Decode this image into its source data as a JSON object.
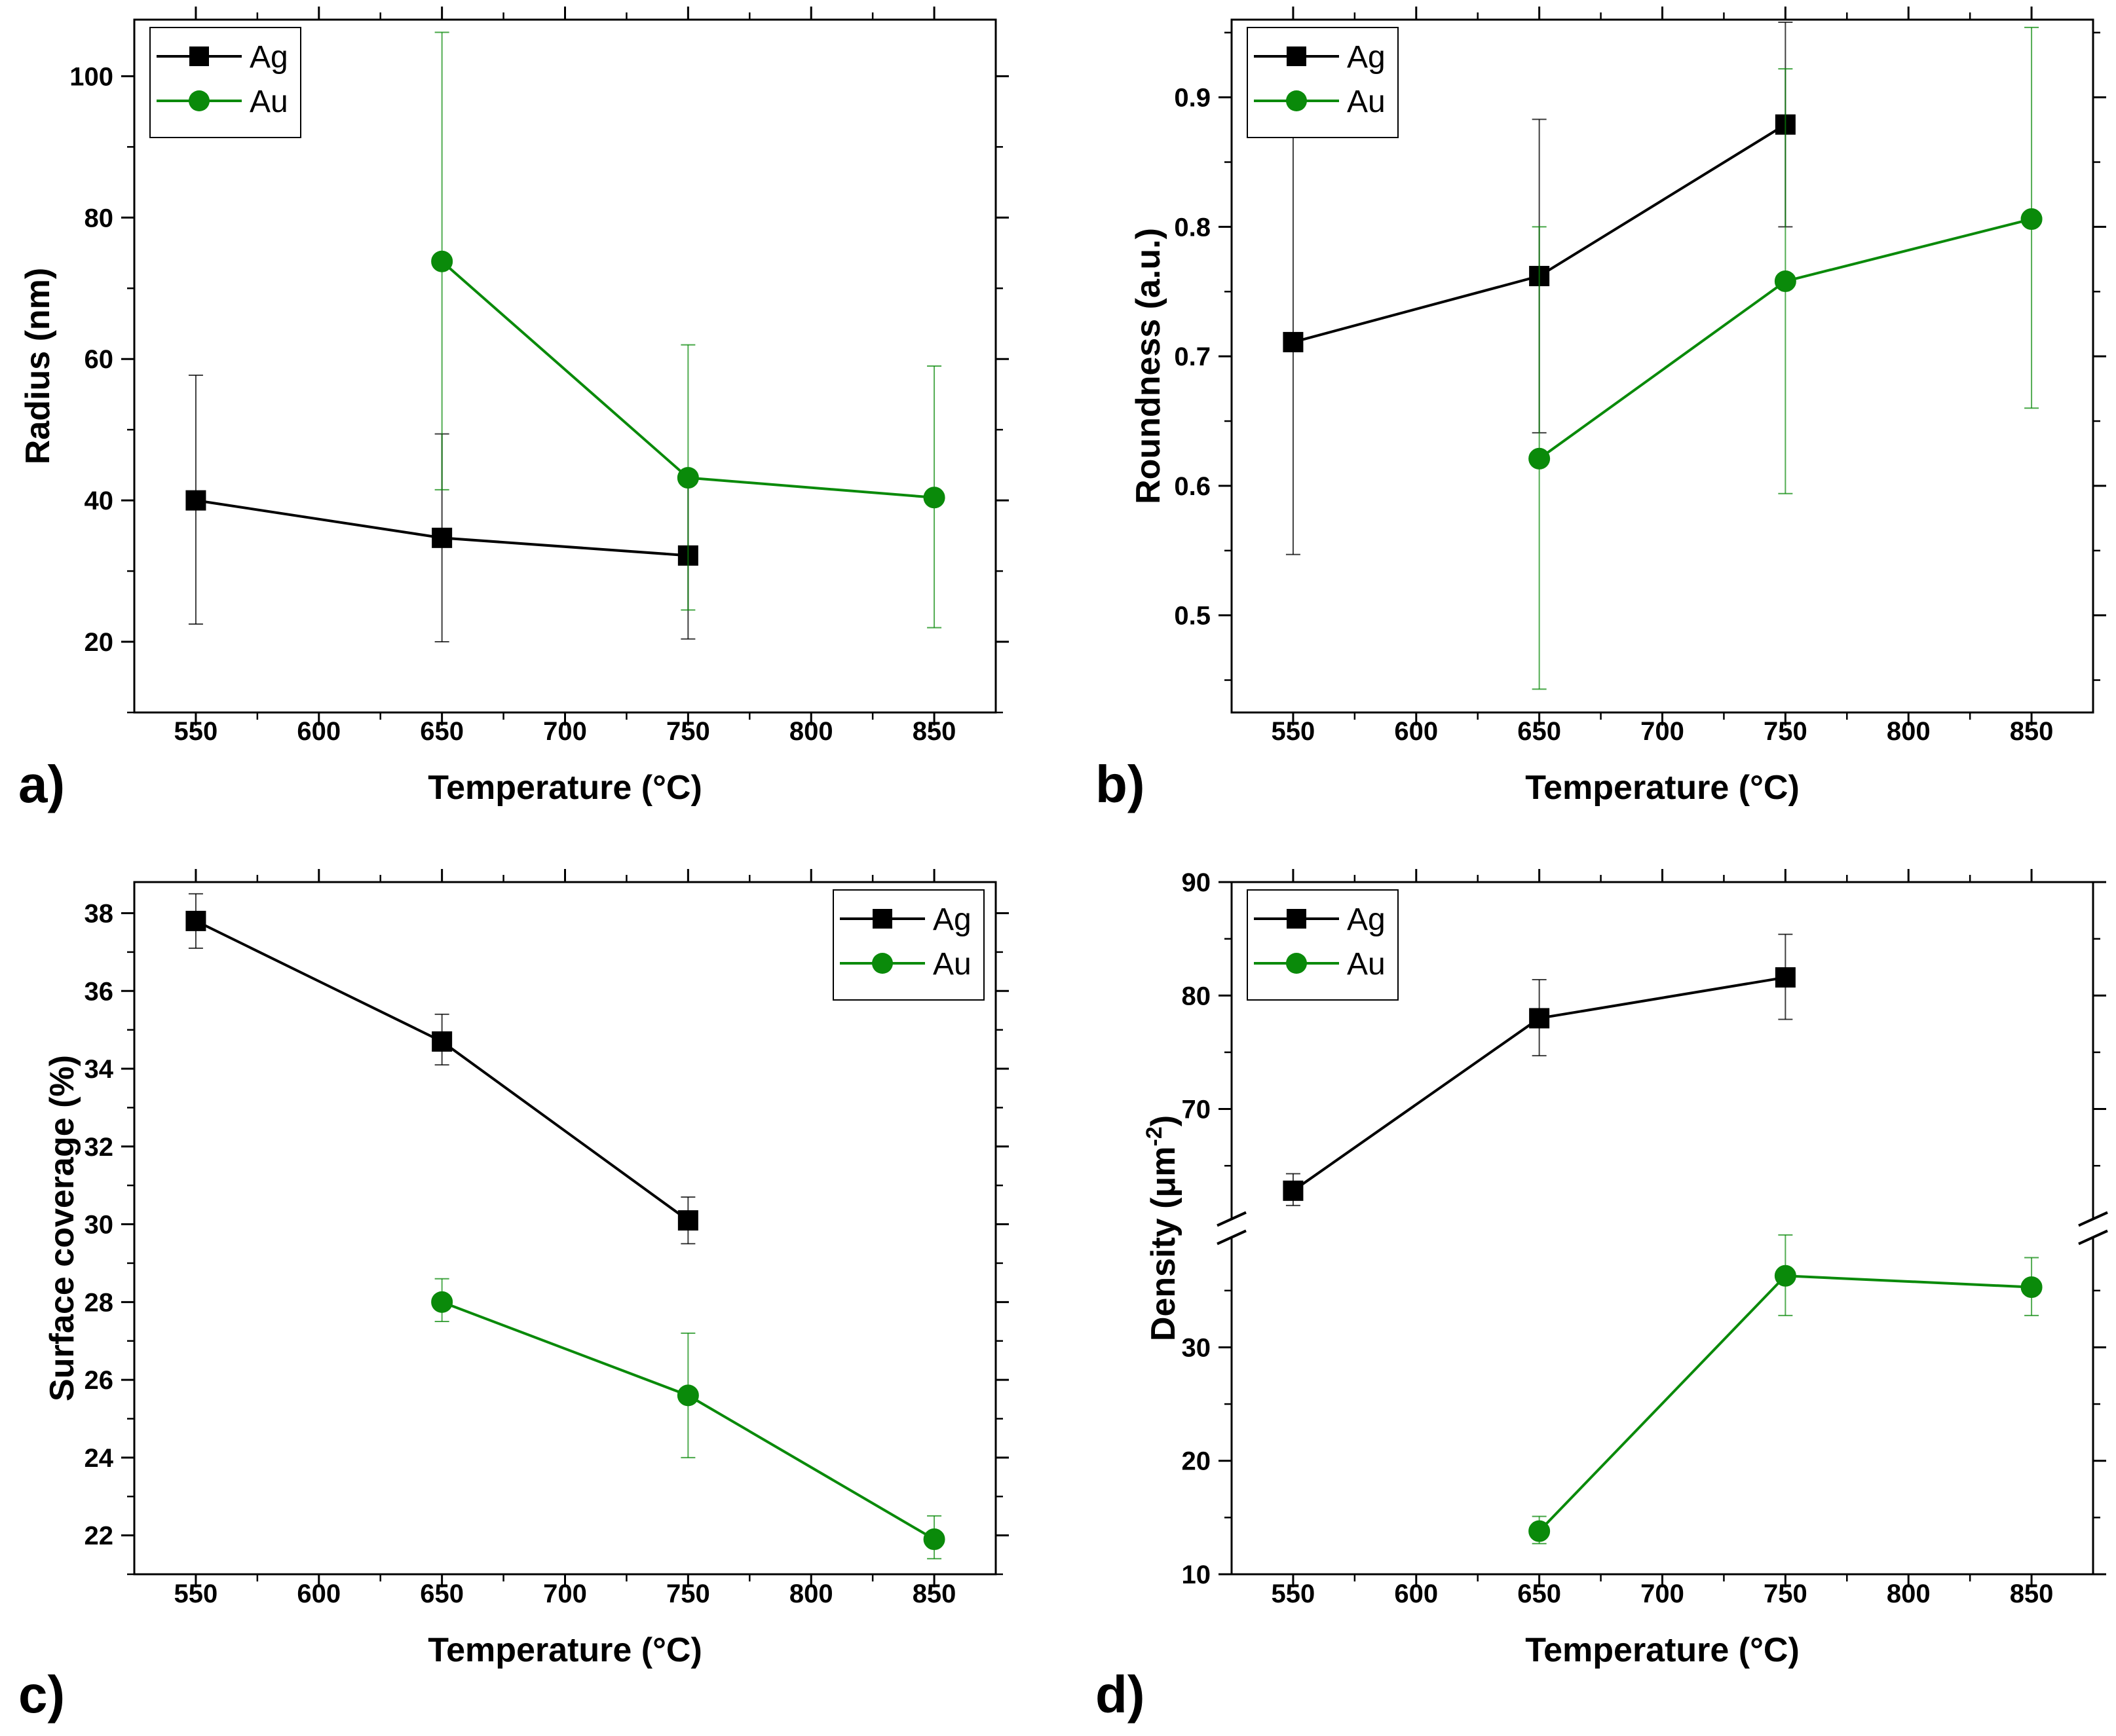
{
  "colors": {
    "Ag": "#000000",
    "Au": "#0a8a0a",
    "axis": "#000000"
  },
  "chart_data": [
    {
      "panel": "a)",
      "type": "line",
      "xlabel": "Temperature (°C)",
      "ylabel": "Radius (nm)",
      "xlim": [
        525,
        875
      ],
      "ylim": [
        10,
        108
      ],
      "xticks": [
        550,
        600,
        650,
        700,
        750,
        800,
        850
      ],
      "yticks": [
        20,
        40,
        60,
        80,
        100
      ],
      "legend_position": "top-left",
      "series": [
        {
          "name": "Ag",
          "marker": "square",
          "x": [
            550,
            650,
            750
          ],
          "y": [
            40,
            34.7,
            32.2
          ],
          "err_low": [
            22.5,
            20.0,
            20.4
          ],
          "err_high": [
            57.7,
            49.4,
            44.2
          ]
        },
        {
          "name": "Au",
          "marker": "circle",
          "x": [
            650,
            750,
            850
          ],
          "y": [
            73.8,
            43.2,
            40.4
          ],
          "err_low": [
            41.5,
            24.5,
            22.0
          ],
          "err_high": [
            106.2,
            62.0,
            59.0
          ]
        }
      ]
    },
    {
      "panel": "b)",
      "type": "line",
      "xlabel": "Temperature (°C)",
      "ylabel": "Roundness (a.u.)",
      "xlim": [
        525,
        875
      ],
      "ylim": [
        0.425,
        0.96
      ],
      "xticks": [
        550,
        600,
        650,
        700,
        750,
        800,
        850
      ],
      "yticks": [
        0.5,
        0.6,
        0.7,
        0.8,
        0.9
      ],
      "legend_position": "top-left",
      "series": [
        {
          "name": "Ag",
          "marker": "square",
          "x": [
            550,
            650,
            750
          ],
          "y": [
            0.711,
            0.762,
            0.879
          ],
          "err_low": [
            0.547,
            0.641,
            0.8
          ],
          "err_high": [
            0.876,
            0.883,
            0.958
          ]
        },
        {
          "name": "Au",
          "marker": "circle",
          "x": [
            650,
            750,
            850
          ],
          "y": [
            0.621,
            0.758,
            0.806
          ],
          "err_low": [
            0.443,
            0.594,
            0.66
          ],
          "err_high": [
            0.8,
            0.922,
            0.954
          ]
        }
      ]
    },
    {
      "panel": "c)",
      "type": "line",
      "xlabel": "Temperature (°C)",
      "ylabel": "Surface coverage (%)",
      "xlim": [
        525,
        875
      ],
      "ylim": [
        21,
        38.8
      ],
      "xticks": [
        550,
        600,
        650,
        700,
        750,
        800,
        850
      ],
      "yticks": [
        22,
        24,
        26,
        28,
        30,
        32,
        34,
        36,
        38
      ],
      "legend_position": "top-right",
      "series": [
        {
          "name": "Ag",
          "marker": "square",
          "x": [
            550,
            650,
            750
          ],
          "y": [
            37.8,
            34.7,
            30.1
          ],
          "err_low": [
            37.1,
            34.1,
            29.5
          ],
          "err_high": [
            38.5,
            35.4,
            30.7
          ]
        },
        {
          "name": "Au",
          "marker": "circle",
          "x": [
            650,
            750,
            850
          ],
          "y": [
            28.0,
            25.6,
            21.9
          ],
          "err_low": [
            27.5,
            24.0,
            21.4
          ],
          "err_high": [
            28.6,
            27.2,
            22.5
          ]
        }
      ]
    },
    {
      "panel": "d)",
      "type": "line",
      "xlabel": "Temperature (°C)",
      "ylabel": "Density (μm",
      "ylabel_sup": "-2",
      "ylabel_close": ")",
      "xlim": [
        525,
        875
      ],
      "broken_axis": true,
      "lower_ylim": [
        10,
        40.5
      ],
      "upper_ylim": [
        59.5,
        90
      ],
      "xticks": [
        550,
        600,
        650,
        700,
        750,
        800,
        850
      ],
      "yticks_lower": [
        10,
        20,
        30
      ],
      "yticks_upper": [
        70,
        80,
        90
      ],
      "legend_position": "top-left",
      "series": [
        {
          "name": "Ag",
          "marker": "square",
          "x": [
            550,
            650,
            750
          ],
          "y": [
            62.8,
            78.0,
            81.6
          ],
          "err_low": [
            61.5,
            74.7,
            77.9
          ],
          "err_high": [
            64.3,
            81.4,
            85.4
          ]
        },
        {
          "name": "Au",
          "marker": "circle",
          "x": [
            650,
            750,
            850
          ],
          "y": [
            13.8,
            36.3,
            35.3
          ],
          "err_low": [
            12.7,
            32.8,
            32.8
          ],
          "err_high": [
            15.1,
            39.9,
            37.9
          ]
        }
      ]
    }
  ]
}
